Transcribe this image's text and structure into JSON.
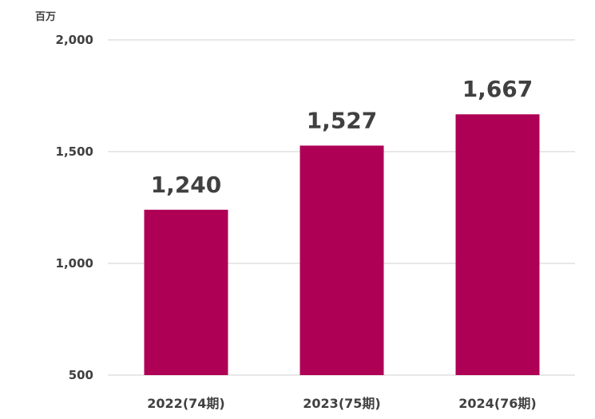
{
  "chart_data": {
    "type": "bar",
    "unit_label": "百万",
    "categories": [
      "2022(74期)",
      "2023(75期)",
      "2024(76期)"
    ],
    "values": [
      1240,
      1527,
      1667
    ],
    "data_labels": [
      "1,240",
      "1,527",
      "1,667"
    ],
    "yticks": [
      500,
      1000,
      1500,
      2000
    ],
    "ytick_labels": [
      "500",
      "1,000",
      "1,500",
      "2,000"
    ],
    "ylim": [
      500,
      2000
    ],
    "grid": true,
    "bar_color": "#ae0055",
    "title": "",
    "xlabel": "",
    "ylabel": ""
  }
}
